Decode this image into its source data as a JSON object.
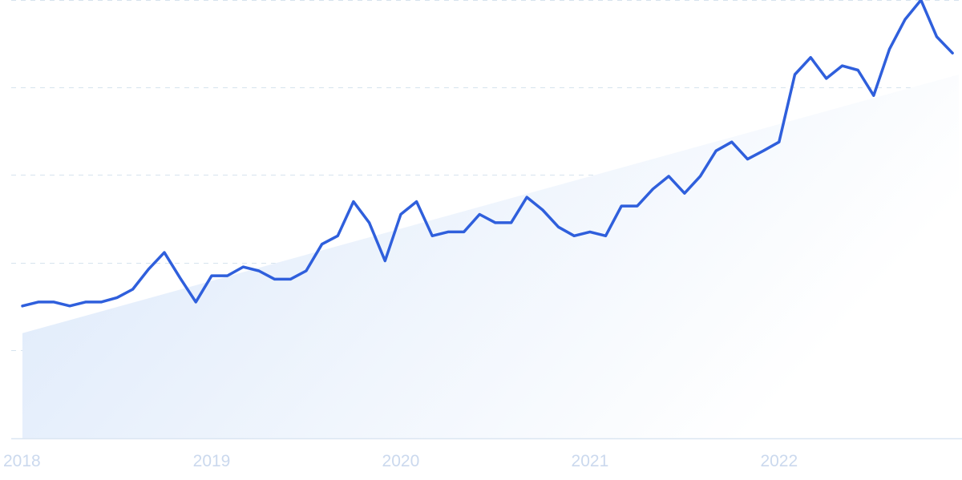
{
  "chart_data": {
    "type": "line",
    "title": "",
    "xlabel": "",
    "ylabel": "",
    "x_tick_labels": [
      "2018",
      "2019",
      "2020",
      "2021",
      "2022"
    ],
    "x_range": [
      2018.0,
      2022.95
    ],
    "y_range": [
      0,
      100
    ],
    "grid": "horizontal-dashed",
    "legend": "none",
    "colors": {
      "line": "#2f5fdc",
      "trend_fill_light": "#ffffff",
      "trend_fill_dark": "#dfeafa",
      "grid": "#d6e3ee",
      "baseline": "#dbe6f2",
      "tick_text": "#cbd9ee"
    },
    "trend": {
      "start": 24,
      "end": 83
    },
    "series": [
      {
        "values": [
          {
            "x": "2018-01",
            "y": 30.2
          },
          {
            "x": "2018-02",
            "y": 31.1
          },
          {
            "x": "2018-03",
            "y": 31.1
          },
          {
            "x": "2018-04",
            "y": 30.2
          },
          {
            "x": "2018-05",
            "y": 31.1
          },
          {
            "x": "2018-06",
            "y": 31.1
          },
          {
            "x": "2018-07",
            "y": 32.1
          },
          {
            "x": "2018-08",
            "y": 34.0
          },
          {
            "x": "2018-09",
            "y": 38.6
          },
          {
            "x": "2018-10",
            "y": 42.4
          },
          {
            "x": "2018-11",
            "y": 36.6
          },
          {
            "x": "2018-12",
            "y": 31.1
          },
          {
            "x": "2019-01",
            "y": 37.1
          },
          {
            "x": "2019-02",
            "y": 37.1
          },
          {
            "x": "2019-03",
            "y": 39.1
          },
          {
            "x": "2019-04",
            "y": 38.2
          },
          {
            "x": "2019-05",
            "y": 36.3
          },
          {
            "x": "2019-06",
            "y": 36.3
          },
          {
            "x": "2019-07",
            "y": 38.2
          },
          {
            "x": "2019-08",
            "y": 44.3
          },
          {
            "x": "2019-09",
            "y": 46.2
          },
          {
            "x": "2019-10",
            "y": 54.0
          },
          {
            "x": "2019-11",
            "y": 49.2
          },
          {
            "x": "2019-12",
            "y": 40.5
          },
          {
            "x": "2020-01",
            "y": 51.1
          },
          {
            "x": "2020-02",
            "y": 54.0
          },
          {
            "x": "2020-03",
            "y": 46.2
          },
          {
            "x": "2020-04",
            "y": 47.1
          },
          {
            "x": "2020-05",
            "y": 47.1
          },
          {
            "x": "2020-06",
            "y": 51.1
          },
          {
            "x": "2020-07",
            "y": 49.2
          },
          {
            "x": "2020-08",
            "y": 49.2
          },
          {
            "x": "2020-09",
            "y": 55.0
          },
          {
            "x": "2020-10",
            "y": 52.1
          },
          {
            "x": "2020-11",
            "y": 48.2
          },
          {
            "x": "2020-12",
            "y": 46.2
          },
          {
            "x": "2021-01",
            "y": 47.1
          },
          {
            "x": "2021-02",
            "y": 46.2
          },
          {
            "x": "2021-03",
            "y": 53.0
          },
          {
            "x": "2021-04",
            "y": 53.0
          },
          {
            "x": "2021-05",
            "y": 56.9
          },
          {
            "x": "2021-06",
            "y": 59.8
          },
          {
            "x": "2021-07",
            "y": 55.9
          },
          {
            "x": "2021-08",
            "y": 59.8
          },
          {
            "x": "2021-09",
            "y": 65.6
          },
          {
            "x": "2021-10",
            "y": 67.6
          },
          {
            "x": "2021-11",
            "y": 63.7
          },
          {
            "x": "2021-12",
            "y": 65.6
          },
          {
            "x": "2022-01",
            "y": 67.6
          },
          {
            "x": "2022-02",
            "y": 83.0
          },
          {
            "x": "2022-03",
            "y": 86.9
          },
          {
            "x": "2022-04",
            "y": 82.1
          },
          {
            "x": "2022-05",
            "y": 85.0
          },
          {
            "x": "2022-06",
            "y": 84.0
          },
          {
            "x": "2022-07",
            "y": 78.2
          },
          {
            "x": "2022-08",
            "y": 88.8
          },
          {
            "x": "2022-09",
            "y": 95.6
          },
          {
            "x": "2022-10",
            "y": 100.0
          },
          {
            "x": "2022-11",
            "y": 91.6
          },
          {
            "x": "2022-12",
            "y": 87.9
          }
        ]
      }
    ]
  }
}
